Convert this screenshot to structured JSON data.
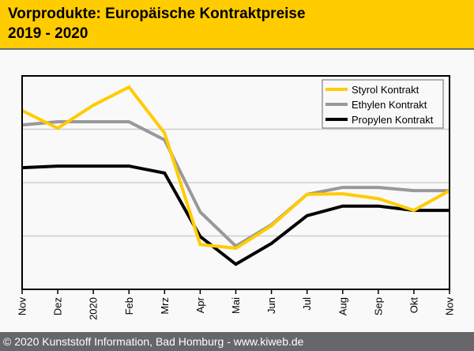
{
  "header": {
    "title_line1": "Vorprodukte: Europäische Kontraktpreise",
    "title_line2": "2019 - 2020"
  },
  "footer": {
    "text": "© 2020 Kunststoff Information, Bad Homburg - www.kiweb.de"
  },
  "colors": {
    "header_bg": "#ffcc00",
    "footer_bg": "#66666b",
    "styrol": "#ffcc00",
    "ethylen": "#999999",
    "propylen": "#000000"
  },
  "chart_data": {
    "type": "line",
    "title": "Vorprodukte: Europäische Kontraktpreise 2019 - 2020",
    "xlabel": "",
    "ylabel": "",
    "y_unit_note": "unlabeled relative scale (gridline units)",
    "ylim": [
      0,
      4
    ],
    "grid": true,
    "legend_position": "top-right",
    "categories": [
      "Nov",
      "Dez",
      "2020",
      "Feb",
      "Mrz",
      "Apr",
      "Mai",
      "Jun",
      "Jul",
      "Aug",
      "Sep",
      "Okt",
      "Nov"
    ],
    "series": [
      {
        "name": "Styrol Kontrakt",
        "color": "#ffcc00",
        "values": [
          3.35,
          3.02,
          3.45,
          3.79,
          2.93,
          0.84,
          0.77,
          1.19,
          1.78,
          1.79,
          1.7,
          1.48,
          1.85
        ]
      },
      {
        "name": "Ethylen Kontrakt",
        "color": "#999999",
        "values": [
          3.08,
          3.14,
          3.14,
          3.14,
          2.8,
          1.45,
          0.81,
          1.21,
          1.78,
          1.91,
          1.91,
          1.85,
          1.85
        ]
      },
      {
        "name": "Propylen Kontrakt",
        "color": "#000000",
        "values": [
          2.28,
          2.31,
          2.31,
          2.31,
          2.18,
          0.99,
          0.47,
          0.86,
          1.38,
          1.56,
          1.56,
          1.48,
          1.48
        ]
      }
    ]
  }
}
